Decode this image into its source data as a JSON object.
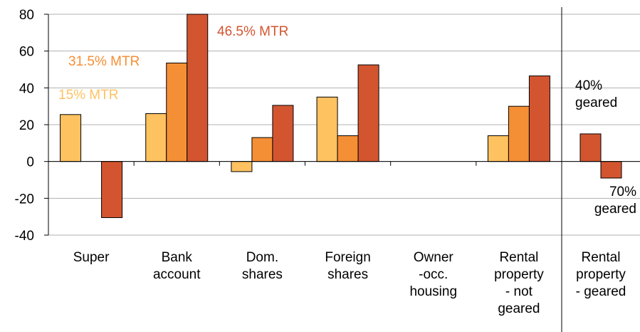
{
  "chart_data": {
    "type": "bar",
    "categories": [
      [
        "Super"
      ],
      [
        "Bank",
        "account"
      ],
      [
        "Dom.",
        "shares"
      ],
      [
        "Foreign",
        "shares"
      ],
      [
        "Owner",
        "-occ.",
        "housing"
      ],
      [
        "Rental",
        "property",
        "- not",
        "geared"
      ],
      [
        "Rental",
        "property",
        "- geared"
      ]
    ],
    "series": [
      {
        "name": "15% MTR",
        "color": "#fec261",
        "values": [
          25.5,
          26,
          -5.5,
          35,
          null,
          14,
          null
        ]
      },
      {
        "name": "31.5% MTR",
        "color": "#f58f35",
        "values": [
          null,
          53.5,
          13,
          14,
          null,
          30,
          null
        ]
      },
      {
        "name": "46.5% MTR",
        "color": "#d35530",
        "values": [
          -30.5,
          80,
          30.5,
          52.5,
          null,
          46.5,
          null
        ]
      },
      {
        "name": "40% geared",
        "color": "#d35530",
        "values": [
          null,
          null,
          null,
          null,
          null,
          null,
          15
        ]
      },
      {
        "name": "70% geared",
        "color": "#d35530",
        "values": [
          null,
          null,
          null,
          null,
          null,
          null,
          -9
        ]
      }
    ],
    "ylim": [
      -40,
      80
    ],
    "yticks": [
      -40,
      -20,
      0,
      20,
      40,
      60,
      80
    ],
    "grid": true
  }
}
